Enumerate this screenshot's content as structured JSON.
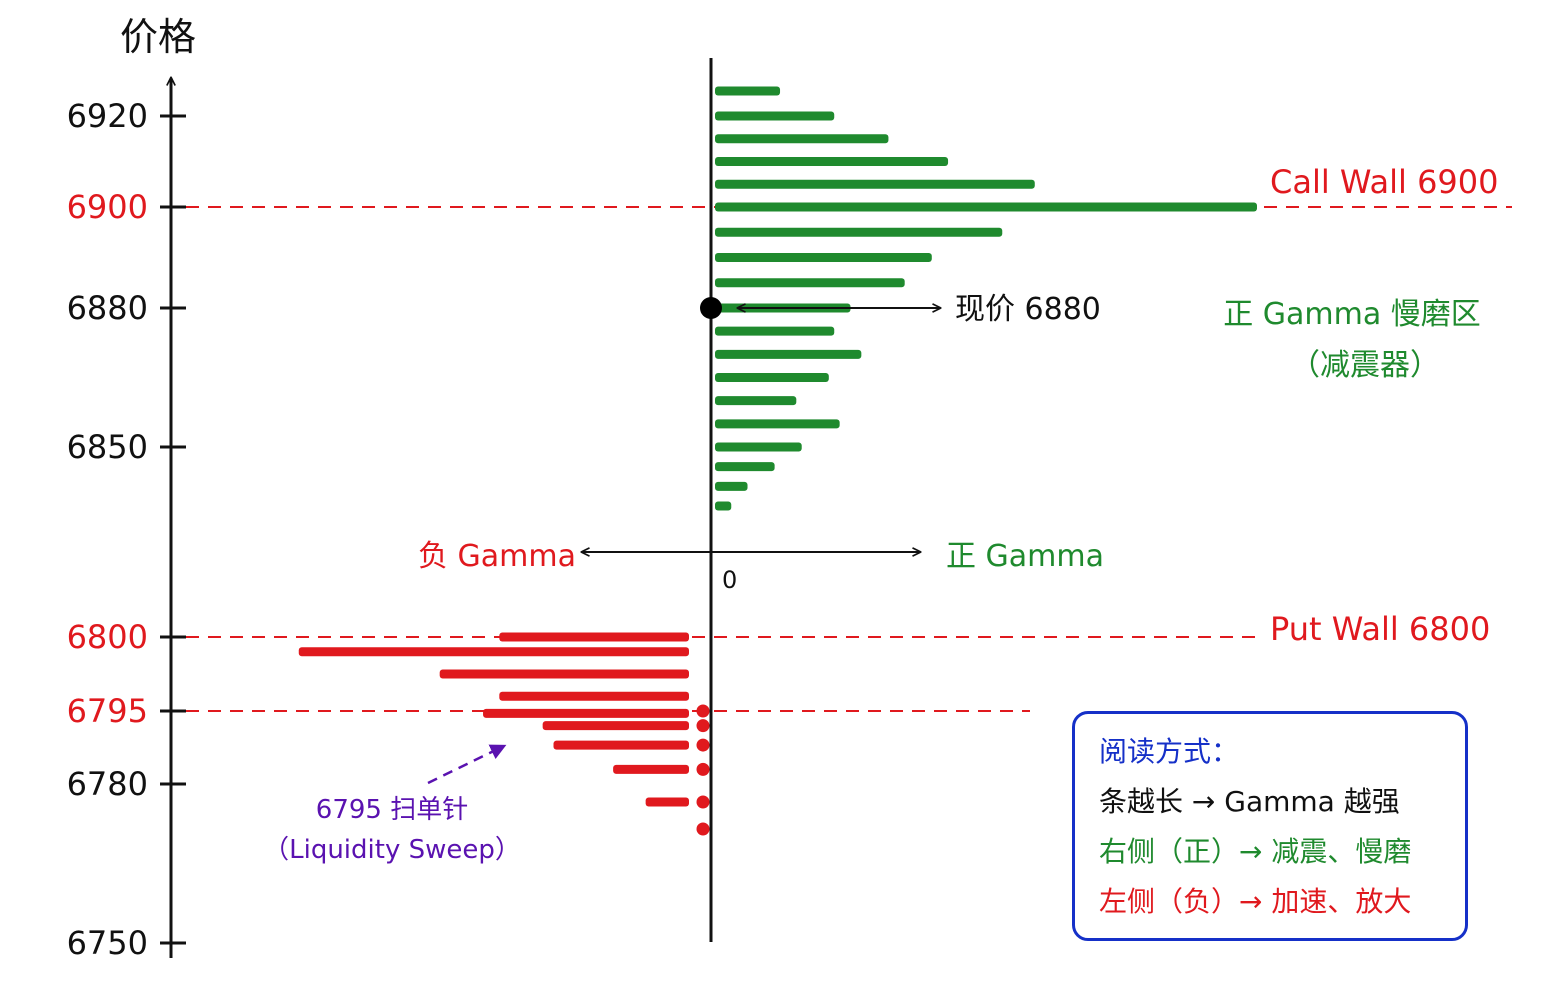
{
  "chart_data": {
    "type": "bar",
    "orientation": "horizontal",
    "ylabel": "价格",
    "y_ticks": [
      {
        "value": 6920,
        "label": "6920",
        "color": "#111111"
      },
      {
        "value": 6900,
        "label": "6900",
        "color": "#e0191e"
      },
      {
        "value": 6880,
        "label": "6880",
        "color": "#111111"
      },
      {
        "value": 6850,
        "label": "6850",
        "color": "#111111"
      },
      {
        "value": 6800,
        "label": "6800",
        "color": "#e0191e"
      },
      {
        "value": 6795,
        "label": "6795",
        "color": "#e0191e"
      },
      {
        "value": 6780,
        "label": "6780",
        "color": "#111111"
      },
      {
        "value": 6750,
        "label": "6750",
        "color": "#111111"
      }
    ],
    "zero_label": "0",
    "positive_gamma": {
      "color": "#1f8a2e",
      "label": "正 Gamma",
      "bars": [
        {
          "price": 6925,
          "value": 6
        },
        {
          "price": 6920,
          "value": 11
        },
        {
          "price": 6915,
          "value": 16
        },
        {
          "price": 6910,
          "value": 21.5
        },
        {
          "price": 6905,
          "value": 29.5
        },
        {
          "price": 6900,
          "value": 50
        },
        {
          "price": 6895,
          "value": 26.5
        },
        {
          "price": 6890,
          "value": 20
        },
        {
          "price": 6885,
          "value": 17.5
        },
        {
          "price": 6880,
          "value": 12.5
        },
        {
          "price": 6875,
          "value": 11
        },
        {
          "price": 6870,
          "value": 13.5
        },
        {
          "price": 6865,
          "value": 10.5
        },
        {
          "price": 6860,
          "value": 7.5
        },
        {
          "price": 6855,
          "value": 11.5
        },
        {
          "price": 6850,
          "value": 8
        },
        {
          "price": 6845,
          "value": 5.5
        },
        {
          "price": 6840,
          "value": 3
        },
        {
          "price": 6835,
          "value": 1.5
        }
      ]
    },
    "negative_gamma": {
      "color": "#e0191e",
      "label": "负 Gamma",
      "bars": [
        {
          "price": 6800,
          "value": -17.5
        },
        {
          "price": 6799,
          "value": -36
        },
        {
          "price": 6797.5,
          "value": -23
        },
        {
          "price": 6796,
          "value": -17.5
        },
        {
          "price": 6794.5,
          "value": -19
        },
        {
          "price": 6792,
          "value": -13.5
        },
        {
          "price": 6788,
          "value": -12.5
        },
        {
          "price": 6783,
          "value": -7
        },
        {
          "price": 6778,
          "value": -4
        }
      ],
      "pin_dots": [
        6795,
        6792,
        6788,
        6783,
        6778,
        6775
      ]
    },
    "current_price": {
      "value": 6880,
      "label": "现价 6880"
    },
    "walls": [
      {
        "value": 6900,
        "label": "Call Wall 6900"
      },
      {
        "value": 6800,
        "label": "Put Wall 6800"
      },
      {
        "value": 6795,
        "label": ""
      }
    ],
    "direction_left_label": "负 Gamma",
    "direction_right_label": "正 Gamma",
    "zone_label_line1": "正 Gamma 慢磨区",
    "zone_label_line2": "（减震器）",
    "sweep_label_line1": "6795 扫单针",
    "sweep_label_line2": "（Liquidity Sweep）"
  },
  "legend": {
    "title": "阅读方式：",
    "line1": "条越长 → Gamma 越强",
    "line2": "右侧（正）→ 减震、慢磨",
    "line3": "左侧（负）→ 加速、放大"
  },
  "colors": {
    "green": "#1f8a2e",
    "red": "#e0191e",
    "black": "#111111",
    "purple": "#5a12b0",
    "blue": "#1530c8"
  }
}
